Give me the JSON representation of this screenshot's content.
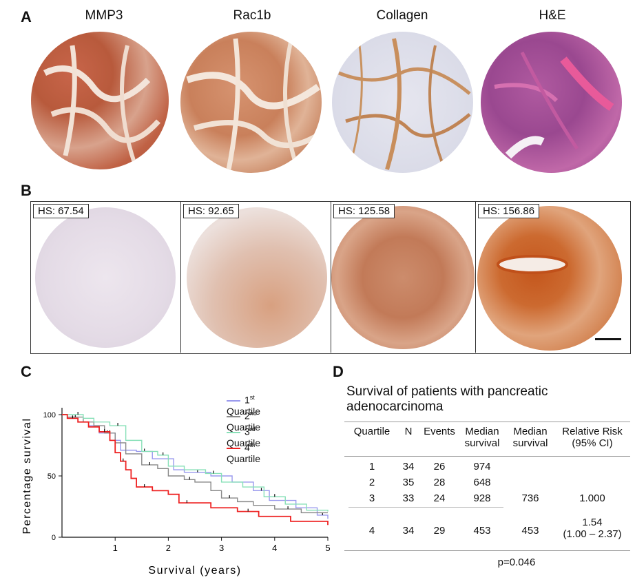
{
  "panel_a": {
    "letter": "A",
    "titles": [
      "MMP3",
      "Rac1b",
      "Collagen",
      "H&E"
    ]
  },
  "panel_b": {
    "letter": "B",
    "hs_labels": [
      "HS: 67.54",
      "HS: 92.65",
      "HS: 125.58",
      "HS: 156.86"
    ]
  },
  "panel_c": {
    "letter": "C",
    "legend": [
      {
        "label": "1",
        "sup": "st",
        "rest": " Quartile",
        "color": "#9999ee"
      },
      {
        "label": "2",
        "sup": "nd",
        "rest": " Quartile",
        "color": "#888888"
      },
      {
        "label": "3",
        "sup": "rd",
        "rest": " Quartile",
        "color": "#88e0b8"
      },
      {
        "label": "4",
        "sup": "th",
        "rest": " Quartile",
        "color": "#ee2222"
      }
    ]
  },
  "chart_data": {
    "type": "line",
    "xlabel": "Survival (years)",
    "ylabel": "Percentage survival",
    "xlim": [
      0,
      5
    ],
    "ylim": [
      0,
      100
    ],
    "xticks": [
      "1",
      "2",
      "3",
      "4",
      "5"
    ],
    "yticks": [
      "0",
      "50",
      "100"
    ],
    "series": [
      {
        "name": "1st Quartile",
        "color": "#9999ee",
        "x": [
          0,
          0.1,
          0.3,
          0.5,
          0.7,
          1.0,
          1.1,
          1.4,
          1.7,
          2.1,
          2.3,
          2.8,
          3.2,
          3.6,
          3.9,
          4.4,
          4.8,
          5.0
        ],
        "y": [
          100,
          97,
          94,
          91,
          85,
          79,
          71,
          70,
          64,
          55,
          53,
          50,
          45,
          38,
          30,
          24,
          18,
          15
        ]
      },
      {
        "name": "2nd Quartile",
        "color": "#888888",
        "x": [
          0,
          0.1,
          0.4,
          0.6,
          0.8,
          1.0,
          1.2,
          1.5,
          1.8,
          2.0,
          2.3,
          2.5,
          2.8,
          3.0,
          3.3,
          3.6,
          4.0,
          4.5,
          5.0
        ],
        "y": [
          100,
          98,
          94,
          91,
          85,
          77,
          68,
          59,
          56,
          50,
          47,
          45,
          38,
          32,
          29,
          26,
          23,
          20,
          20
        ]
      },
      {
        "name": "3rd Quartile",
        "color": "#88e0b8",
        "x": [
          0,
          0.2,
          0.4,
          0.6,
          0.9,
          1.2,
          1.5,
          1.8,
          2.0,
          2.3,
          2.7,
          3.0,
          3.4,
          3.8,
          4.2,
          4.6,
          5.0
        ],
        "y": [
          100,
          100,
          97,
          94,
          91,
          79,
          70,
          67,
          58,
          55,
          52,
          45,
          41,
          33,
          27,
          22,
          21
        ]
      },
      {
        "name": "4th Quartile",
        "color": "#ee2222",
        "x": [
          0,
          0.1,
          0.3,
          0.5,
          0.7,
          0.9,
          1.0,
          1.1,
          1.2,
          1.3,
          1.4,
          1.7,
          2.0,
          2.2,
          2.5,
          2.8,
          3.3,
          3.7,
          4.3,
          5.0
        ],
        "y": [
          100,
          97,
          94,
          90,
          86,
          79,
          69,
          62,
          55,
          48,
          41,
          38,
          35,
          28,
          28,
          24,
          21,
          17,
          13,
          10
        ]
      }
    ]
  },
  "panel_d": {
    "letter": "D",
    "title_line1": "Survival of patients with pancreatic",
    "title_line2": "adenocarcinoma",
    "headers": {
      "quartile": "Quartile",
      "n": "N",
      "events": "Events",
      "median1a": "Median",
      "median1b": "survival",
      "median2a": "Median",
      "median2b": "survival",
      "rr_a": "Relative Risk",
      "rr_b": "(95% CI)"
    },
    "rows": [
      {
        "q": "1",
        "n": "34",
        "e": "26",
        "m": "974"
      },
      {
        "q": "2",
        "n": "35",
        "e": "28",
        "m": "648"
      },
      {
        "q": "3",
        "n": "33",
        "e": "24",
        "m": "928"
      },
      {
        "q": "4",
        "n": "34",
        "e": "29",
        "m": "453"
      }
    ],
    "group_median_1to3": "736",
    "group_rr_1to3": "1.000",
    "group_median_4": "453",
    "group_rr_4a": "1.54",
    "group_rr_4b": "(1.00 – 2.37)",
    "pvalue": "p=0.046"
  }
}
